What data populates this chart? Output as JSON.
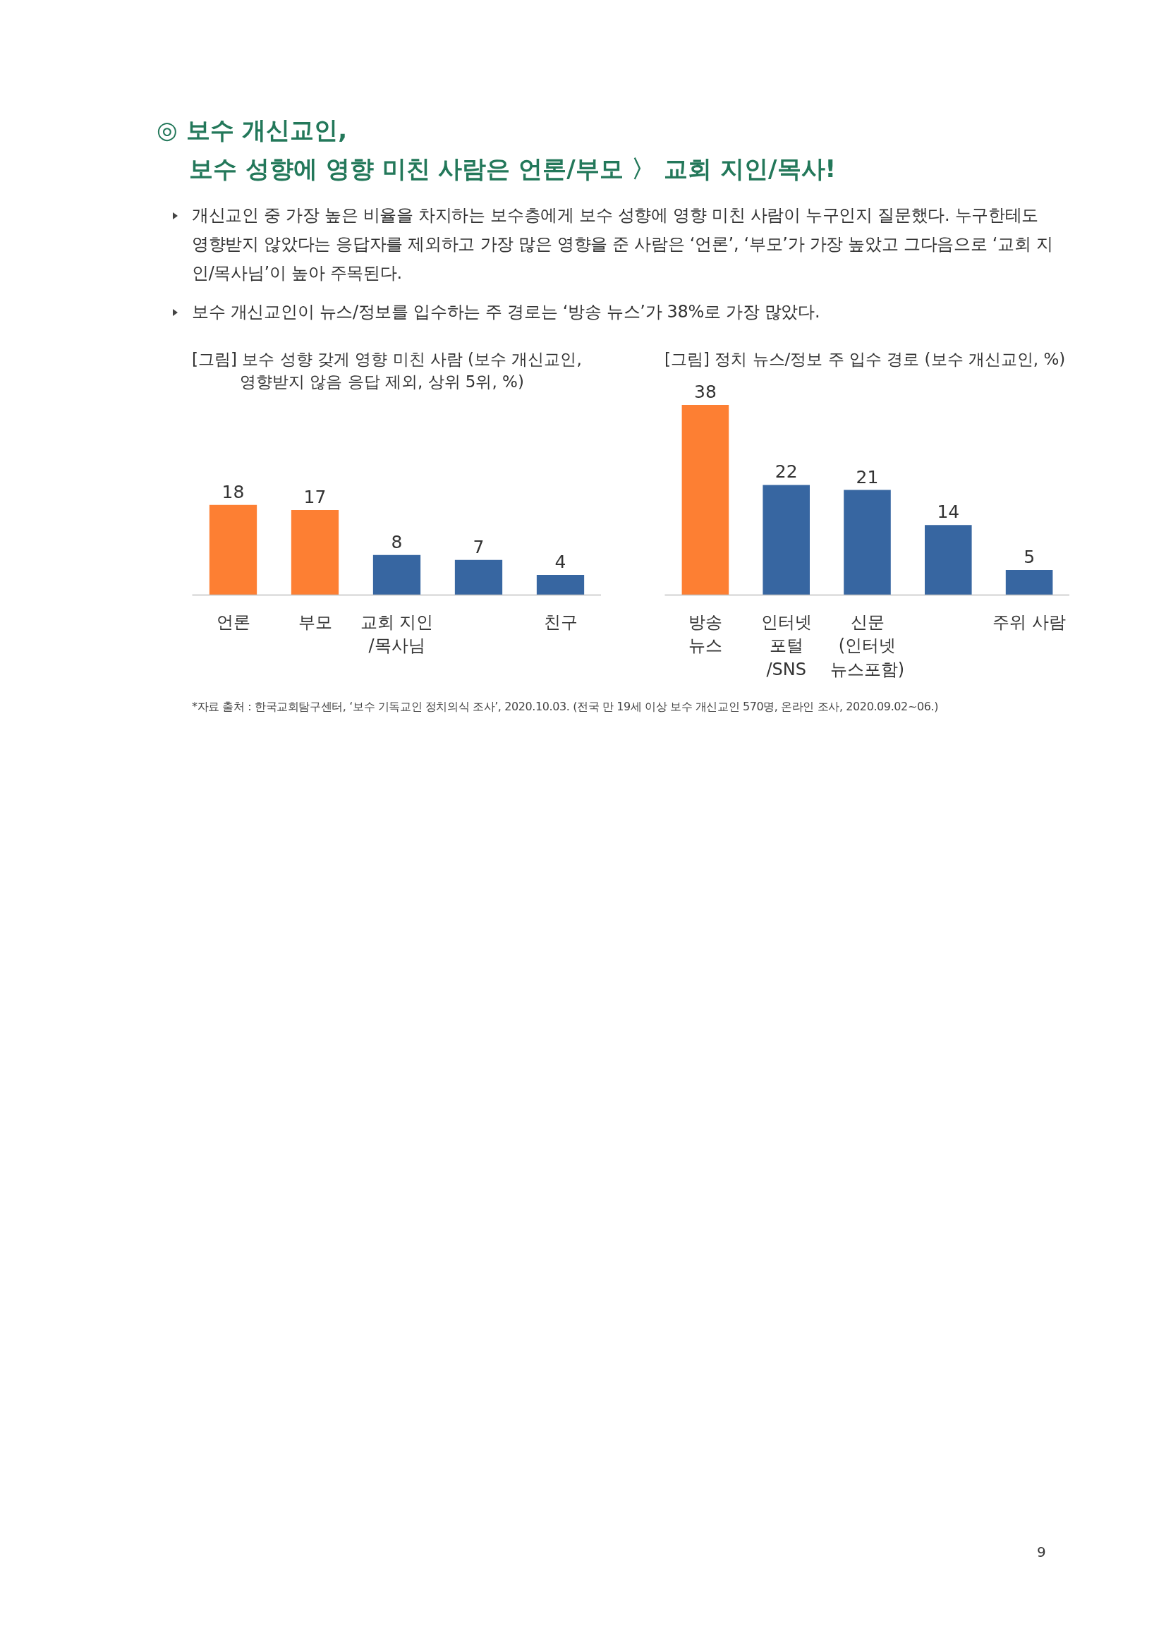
{
  "chart_data": [
    {
      "type": "bar",
      "title": "[그림] 보수 성향 갖게 영향 미친 사람 (보수 개신교인,\n영향받지 않음 응답 제외, 상위 5위, %)",
      "categories": [
        "언론",
        "부모",
        "교회 지인\n/목사님",
        null,
        "친구"
      ],
      "values": [
        18,
        17,
        8,
        7,
        4
      ],
      "colors": [
        "#fd7f33",
        "#fd7f33",
        "#3766a1",
        "#3766a1",
        "#3766a1"
      ],
      "data_labels": true,
      "annotations": [
        "◎ 보수 개신교인,\n보수 성향에 영향 미친 사람은 언론/부모 〉 교회 지인/목사!",
        "개신교인 중 가장 높은 비율을 차지하는 보수층에게 보수 성향에 영향 미친 사람이 누구인지 질문했다. 누구한테도 영향받지 않았다는 응답자를 제외하고 가장 많은 영향을 준 사람은 ‘언론’, ‘부모’가 가장 높았고 그다음으로 ‘교회 지인/목사님’이 높아 주목된다.",
        "보수 개신교인이 뉴스/정보를 입수하는 주 경로는 ‘방송 뉴스’가 38%로 가장 많았다."
      ]
    },
    {
      "type": "bar",
      "title": "[그림] 정치 뉴스/정보 주 입수 경로 (보수 개신교인, %)",
      "categories": [
        "방송\n뉴스",
        "인터넷\n포털\n/SNS",
        "신문\n(인터넷\n뉴스포함)",
        null,
        "주위 사람"
      ],
      "values": [
        38,
        22,
        21,
        14,
        5
      ],
      "colors": [
        "#fd7f33",
        "#3766a1",
        "#3766a1",
        "#3766a1",
        "#3766a1"
      ],
      "data_labels": true,
      "annotations": [
        "*자료 출처 : 한국교회탐구센터, ‘보수 기독교인 정치의식 조사’, 2020.10.03. (전국 만 19세 이상 보수 개신교인 570명, 온라인 조사, 2020.09.02~06.)",
        "9"
      ]
    }
  ]
}
